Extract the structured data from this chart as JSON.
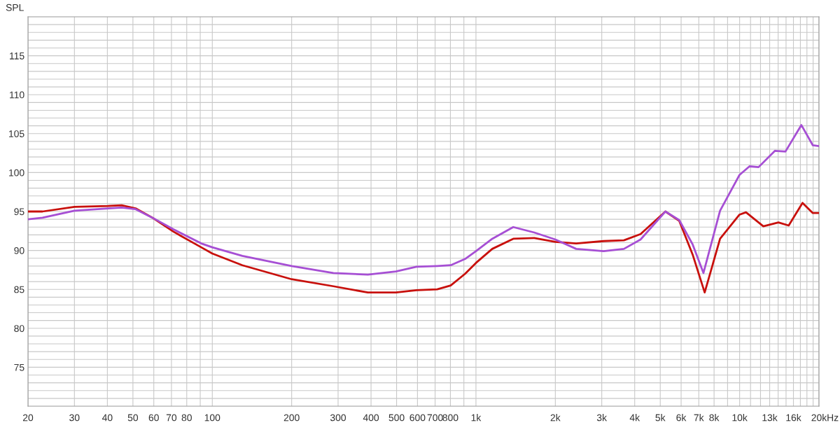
{
  "chart_data": {
    "type": "line",
    "ylabel": "SPL",
    "xlabel": "Hz",
    "log": "x",
    "grid": true,
    "marker": "none",
    "line_style": "solid",
    "xlim": [
      20,
      20000
    ],
    "ylim": [
      70,
      120
    ],
    "xticks": [
      20,
      30,
      40,
      50,
      60,
      70,
      80,
      {
        "value": 90,
        "label": null
      },
      100,
      200,
      300,
      400,
      500,
      600,
      700,
      800,
      {
        "value": 900,
        "label": null
      },
      {
        "value": 1000,
        "label": "1k"
      },
      {
        "value": 2000,
        "label": "2k"
      },
      {
        "value": 3000,
        "label": "3k"
      },
      {
        "value": 4000,
        "label": "4k"
      },
      {
        "value": 5000,
        "label": "5k"
      },
      {
        "value": 6000,
        "label": "6k"
      },
      {
        "value": 7000,
        "label": "7k"
      },
      {
        "value": 8000,
        "label": "8k"
      },
      {
        "value": 9000,
        "label": null
      },
      {
        "value": 10000,
        "label": "10k"
      },
      {
        "value": 11000,
        "label": null
      },
      {
        "value": 12000,
        "label": null
      },
      {
        "value": 13000,
        "label": "13k"
      },
      {
        "value": 14000,
        "label": null
      },
      {
        "value": 15000,
        "label": null
      },
      {
        "value": 16000,
        "label": "16k"
      },
      {
        "value": 17000,
        "label": null
      },
      {
        "value": 18000,
        "label": null
      },
      {
        "value": 19000,
        "label": null
      },
      {
        "value": 20000,
        "label": "20k"
      }
    ],
    "yticks": [
      {
        "value": 71,
        "label": null
      },
      {
        "value": 72,
        "label": null
      },
      {
        "value": 73,
        "label": null
      },
      {
        "value": 74,
        "label": null
      },
      75,
      {
        "value": 76,
        "label": null
      },
      {
        "value": 77,
        "label": null
      },
      {
        "value": 78,
        "label": null
      },
      {
        "value": 79,
        "label": null
      },
      80,
      {
        "value": 81,
        "label": null
      },
      {
        "value": 82,
        "label": null
      },
      {
        "value": 83,
        "label": null
      },
      {
        "value": 84,
        "label": null
      },
      85,
      {
        "value": 86,
        "label": null
      },
      {
        "value": 87,
        "label": null
      },
      {
        "value": 88,
        "label": null
      },
      {
        "value": 89,
        "label": null
      },
      90,
      {
        "value": 91,
        "label": null
      },
      {
        "value": 92,
        "label": null
      },
      {
        "value": 93,
        "label": null
      },
      {
        "value": 94,
        "label": null
      },
      95,
      {
        "value": 96,
        "label": null
      },
      {
        "value": 97,
        "label": null
      },
      {
        "value": 98,
        "label": null
      },
      {
        "value": 99,
        "label": null
      },
      100,
      {
        "value": 101,
        "label": null
      },
      {
        "value": 102,
        "label": null
      },
      {
        "value": 103,
        "label": null
      },
      {
        "value": 104,
        "label": null
      },
      105,
      {
        "value": 106,
        "label": null
      },
      {
        "value": 107,
        "label": null
      },
      {
        "value": 108,
        "label": null
      },
      {
        "value": 109,
        "label": null
      },
      110,
      {
        "value": 111,
        "label": null
      },
      {
        "value": 112,
        "label": null
      },
      {
        "value": 113,
        "label": null
      },
      {
        "value": 114,
        "label": null
      },
      115,
      {
        "value": 116,
        "label": null
      },
      {
        "value": 117,
        "label": null
      },
      {
        "value": 118,
        "label": null
      },
      {
        "value": 119,
        "label": null
      }
    ],
    "series": [
      {
        "color": "#c8100c",
        "x": [
          20,
          22.7,
          30,
          40.2,
          45.3,
          51.2,
          59.3,
          71.3,
          90.8,
          100,
          130,
          200,
          288,
          389,
          497,
          595,
          713,
          802,
          909,
          1000,
          1153,
          1385,
          1664,
          2000,
          2400,
          3050,
          3640,
          4210,
          5230,
          5900,
          6630,
          7370,
          8430,
          9990,
          10570,
          12300,
          14030,
          15350,
          17320,
          18950,
          20000
        ],
        "values": [
          95.0,
          95.0,
          95.6,
          95.7,
          95.8,
          95.4,
          94.2,
          92.4,
          90.4,
          89.6,
          88.1,
          86.3,
          85.4,
          84.6,
          84.6,
          84.9,
          85.0,
          85.5,
          87.0,
          88.4,
          90.2,
          91.5,
          91.6,
          91.1,
          90.9,
          91.2,
          91.3,
          92.1,
          95.0,
          93.8,
          89.5,
          84.6,
          91.5,
          94.6,
          94.9,
          93.1,
          93.6,
          93.2,
          96.1,
          94.8,
          94.8
        ]
      },
      {
        "color": "#a64fd4",
        "x": [
          20,
          22.7,
          30,
          40.2,
          45.3,
          51.2,
          59.3,
          71.3,
          90.8,
          100,
          130,
          200,
          288,
          389,
          497,
          595,
          713,
          802,
          909,
          1000,
          1153,
          1385,
          1664,
          2000,
          2400,
          3050,
          3640,
          4210,
          5230,
          5900,
          6630,
          7290,
          8430,
          9990,
          10900,
          11800,
          13620,
          14920,
          17150,
          18950,
          20000
        ],
        "values": [
          94.0,
          94.2,
          95.1,
          95.4,
          95.5,
          95.3,
          94.2,
          92.7,
          90.9,
          90.4,
          89.3,
          88.0,
          87.1,
          86.9,
          87.3,
          87.9,
          88.0,
          88.1,
          88.9,
          89.9,
          91.5,
          93.0,
          92.3,
          91.4,
          90.2,
          89.9,
          90.2,
          91.4,
          95.0,
          93.9,
          90.8,
          87.1,
          95.1,
          99.7,
          100.8,
          100.7,
          102.8,
          102.7,
          106.1,
          103.5,
          103.4
        ]
      }
    ]
  }
}
